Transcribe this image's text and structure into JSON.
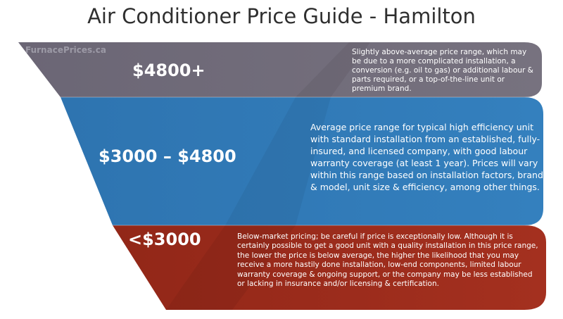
{
  "title": "Air Conditioner Price Guide - Hamilton",
  "watermark": "FurnacePrices.ca",
  "tiers": [
    {
      "price": "$4800+",
      "description": "Slightly above-average price range, which may be due to a more complicated installation, a conversion (e.g. oil to gas) or additional labour & parts required, or a top-of-the-line unit or premium brand.",
      "color": "#6f6a78"
    },
    {
      "price": "$3000 – $4800",
      "description": "Average price range for typical high efficiency unit with standard installation from an established, fully-insured, and licensed company, with good labour warranty coverage (at least 1 year). Prices will vary within this range based on installation factors, brand & model, unit size & efficiency, among other things.",
      "color": "#2f78b5"
    },
    {
      "price": "<$3000",
      "description": "Below-market pricing; be careful if price is exceptionally low. Although it is certainly possible to get a good unit with a quality installation in this price range, the lower the price is below average, the higher the likelihood that you may receive a more hastily done installation, low-end components, limited labour warranty coverage & ongoing support, or the company may be less established or lacking in insurance and/or licensing & certification.",
      "color": "#9c2a1a"
    }
  ]
}
